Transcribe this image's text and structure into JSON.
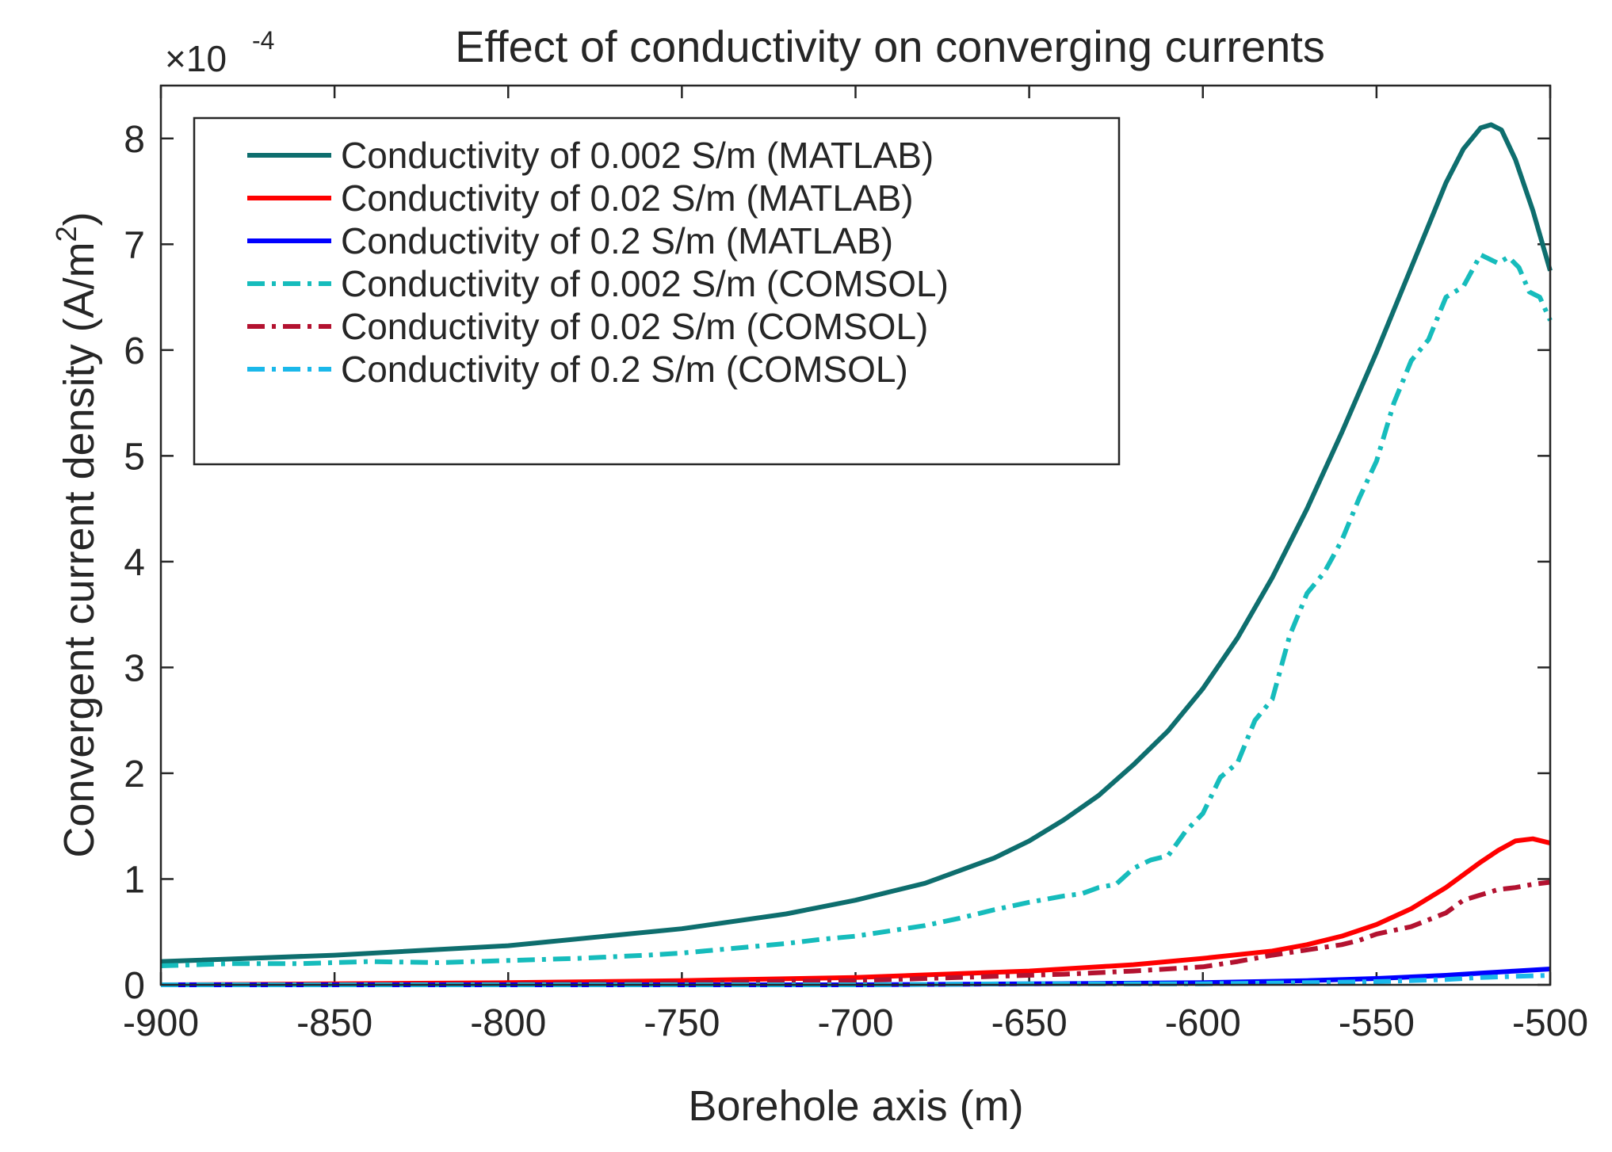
{
  "chart_data": {
    "type": "line",
    "title": "Effect of conductivity on converging currents",
    "exponent_label": {
      "base": "×10",
      "power": "-4"
    },
    "xlabel": "Borehole axis (m)",
    "ylabel": {
      "main": "Convergent current density (A/m",
      "sup": "2",
      "close": ")"
    },
    "xlim": [
      -900,
      -500
    ],
    "ylim": [
      0,
      8.5
    ],
    "xticks": [
      -900,
      -850,
      -800,
      -750,
      -700,
      -650,
      -600,
      -550,
      -500
    ],
    "xtick_labels": [
      "-900",
      "-850",
      "-800",
      "-750",
      "-700",
      "-650",
      "-600",
      "-550",
      "-500"
    ],
    "yticks": [
      0,
      1,
      2,
      3,
      4,
      5,
      6,
      7,
      8
    ],
    "ytick_labels": [
      "0",
      "1",
      "2",
      "3",
      "4",
      "5",
      "6",
      "7",
      "8"
    ],
    "legend_position": "top-left",
    "series": [
      {
        "name": "Conductivity of 0.002 S/m (MATLAB)",
        "color": "#0e6e6e",
        "style": "solid",
        "x": [
          -900,
          -850,
          -800,
          -750,
          -720,
          -700,
          -680,
          -660,
          -650,
          -640,
          -630,
          -620,
          -610,
          -600,
          -590,
          -580,
          -570,
          -560,
          -550,
          -540,
          -530,
          -525,
          -520,
          -517,
          -514,
          -510,
          -505,
          -500
        ],
        "y": [
          0.22,
          0.28,
          0.37,
          0.53,
          0.67,
          0.8,
          0.96,
          1.2,
          1.36,
          1.56,
          1.79,
          2.08,
          2.4,
          2.8,
          3.28,
          3.85,
          4.5,
          5.22,
          5.98,
          6.78,
          7.58,
          7.9,
          8.1,
          8.13,
          8.08,
          7.8,
          7.32,
          6.75
        ]
      },
      {
        "name": "Conductivity of 0.02 S/m (MATLAB)",
        "color": "#ff0000",
        "style": "solid",
        "x": [
          -900,
          -850,
          -800,
          -750,
          -700,
          -650,
          -620,
          -600,
          -580,
          -570,
          -560,
          -550,
          -540,
          -530,
          -520,
          -515,
          -510,
          -505,
          -500
        ],
        "y": [
          0.0,
          0.01,
          0.02,
          0.04,
          0.07,
          0.13,
          0.19,
          0.25,
          0.32,
          0.38,
          0.46,
          0.57,
          0.72,
          0.92,
          1.16,
          1.27,
          1.36,
          1.38,
          1.34
        ]
      },
      {
        "name": "Conductivity of 0.2 S/m (MATLAB)",
        "color": "#0000ff",
        "style": "solid",
        "x": [
          -900,
          -800,
          -700,
          -650,
          -600,
          -570,
          -550,
          -530,
          -520,
          -510,
          -500
        ],
        "y": [
          0.0,
          0.0,
          0.0,
          0.01,
          0.02,
          0.04,
          0.06,
          0.09,
          0.11,
          0.13,
          0.15
        ]
      },
      {
        "name": "Conductivity of 0.002 S/m (COMSOL)",
        "color": "#16bcbc",
        "style": "dashdot",
        "x": [
          -900,
          -880,
          -860,
          -840,
          -820,
          -800,
          -780,
          -760,
          -750,
          -740,
          -730,
          -720,
          -710,
          -700,
          -690,
          -680,
          -670,
          -660,
          -650,
          -640,
          -635,
          -630,
          -625,
          -620,
          -615,
          -610,
          -605,
          -600,
          -595,
          -590,
          -585,
          -580,
          -575,
          -570,
          -565,
          -560,
          -555,
          -550,
          -545,
          -540,
          -535,
          -530,
          -525,
          -520,
          -515,
          -512,
          -509,
          -506,
          -503,
          -500
        ],
        "y": [
          0.18,
          0.2,
          0.2,
          0.22,
          0.21,
          0.23,
          0.25,
          0.28,
          0.3,
          0.33,
          0.36,
          0.39,
          0.43,
          0.46,
          0.51,
          0.56,
          0.63,
          0.71,
          0.78,
          0.84,
          0.86,
          0.92,
          0.95,
          1.1,
          1.18,
          1.22,
          1.45,
          1.62,
          1.96,
          2.1,
          2.5,
          2.7,
          3.3,
          3.7,
          3.9,
          4.2,
          4.6,
          4.95,
          5.5,
          5.9,
          6.1,
          6.5,
          6.6,
          6.9,
          6.82,
          6.88,
          6.78,
          6.55,
          6.5,
          6.28
        ]
      },
      {
        "name": "Conductivity of 0.02 S/m (COMSOL)",
        "color": "#b31230",
        "style": "dashdot",
        "x": [
          -900,
          -850,
          -800,
          -750,
          -700,
          -660,
          -640,
          -620,
          -600,
          -590,
          -580,
          -570,
          -560,
          -555,
          -550,
          -540,
          -530,
          -525,
          -520,
          -515,
          -510,
          -505,
          -500
        ],
        "y": [
          0.0,
          0.0,
          0.01,
          0.02,
          0.04,
          0.08,
          0.1,
          0.13,
          0.17,
          0.22,
          0.28,
          0.33,
          0.38,
          0.42,
          0.48,
          0.55,
          0.68,
          0.8,
          0.85,
          0.9,
          0.92,
          0.95,
          0.97
        ]
      },
      {
        "name": "Conductivity of 0.2 S/m (COMSOL)",
        "color": "#1ab8ea",
        "style": "dashdot",
        "x": [
          -900,
          -800,
          -700,
          -650,
          -600,
          -570,
          -550,
          -530,
          -520,
          -510,
          -500
        ],
        "y": [
          0.0,
          0.0,
          0.0,
          0.01,
          0.01,
          0.02,
          0.03,
          0.05,
          0.07,
          0.08,
          0.09
        ]
      }
    ]
  }
}
